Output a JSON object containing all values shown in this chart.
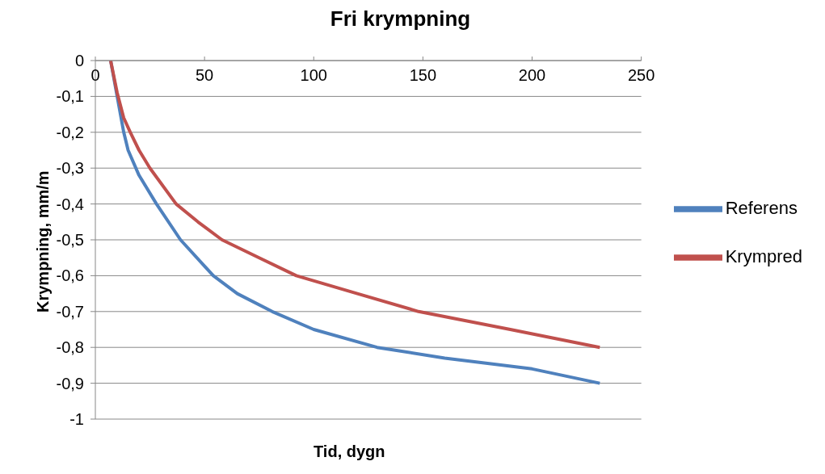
{
  "chart_data": {
    "type": "line",
    "title": "Fri krympning",
    "xlabel": "Tid, dygn",
    "ylabel": "Krympning, mm/m",
    "xlim": [
      0,
      250
    ],
    "xticks": [
      0,
      50,
      100,
      150,
      200,
      250
    ],
    "ylim": [
      -1,
      0
    ],
    "yticks": [
      {
        "value": 0,
        "label": "0"
      },
      {
        "value": -0.1,
        "label": "-0,1"
      },
      {
        "value": -0.2,
        "label": "-0,2"
      },
      {
        "value": -0.3,
        "label": "-0,3"
      },
      {
        "value": -0.4,
        "label": "-0,4"
      },
      {
        "value": -0.5,
        "label": "-0,5"
      },
      {
        "value": -0.6,
        "label": "-0,6"
      },
      {
        "value": -0.7,
        "label": "-0,7"
      },
      {
        "value": -0.8,
        "label": "-0,8"
      },
      {
        "value": -0.9,
        "label": "-0,9"
      },
      {
        "value": -1,
        "label": "-1"
      }
    ],
    "grid": "y",
    "legend": "right",
    "marker": "none",
    "line_style": "solid",
    "series": [
      {
        "name": "Referens",
        "color": "#4f81bd",
        "x": [
          7,
          10,
          13,
          15,
          20,
          28,
          39,
          54,
          65,
          81,
          100,
          129,
          160,
          200,
          231
        ],
        "values": [
          0,
          -0.1,
          -0.2,
          -0.25,
          -0.32,
          -0.4,
          -0.5,
          -0.6,
          -0.65,
          -0.7,
          -0.75,
          -0.8,
          -0.83,
          -0.86,
          -0.9
        ]
      },
      {
        "name": "Krympred",
        "color": "#c0504d",
        "x": [
          7,
          10,
          13,
          16,
          20,
          25,
          37,
          47,
          58,
          75,
          92,
          120,
          148,
          190,
          231
        ],
        "values": [
          0,
          -0.09,
          -0.16,
          -0.2,
          -0.25,
          -0.3,
          -0.4,
          -0.45,
          -0.5,
          -0.55,
          -0.6,
          -0.65,
          -0.7,
          -0.75,
          -0.8
        ]
      }
    ]
  }
}
